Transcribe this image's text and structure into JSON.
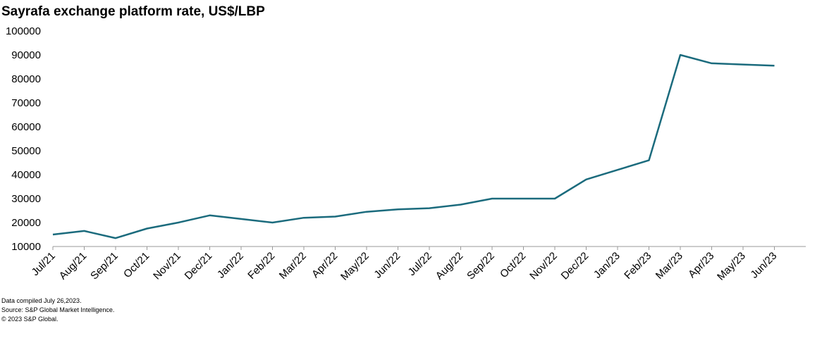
{
  "chart_data": {
    "type": "line",
    "title": "Sayrafa exchange platform rate, US$/LBP",
    "categories": [
      "Jul/21",
      "Aug/21",
      "Sep/21",
      "Oct/21",
      "Nov/21",
      "Dec/21",
      "Jan/22",
      "Feb/22",
      "Mar/22",
      "Apr/22",
      "May/22",
      "Jun/22",
      "Jul/22",
      "Aug/22",
      "Sep/22",
      "Oct/22",
      "Nov/22",
      "Dec/22",
      "Jan/23",
      "Feb/23",
      "Mar/23",
      "Apr/23",
      "May/23",
      "Jun/23"
    ],
    "series": [
      {
        "name": "Sayrafa rate",
        "color": "#1b6b7d",
        "values": [
          15000,
          16500,
          13500,
          17500,
          20000,
          23000,
          21500,
          20000,
          22000,
          22500,
          24500,
          25500,
          26000,
          27500,
          30000,
          30000,
          30000,
          38000,
          42000,
          46000,
          90000,
          86500,
          86000,
          85500
        ]
      }
    ],
    "ylim": [
      10000,
      100000
    ],
    "yticks": [
      10000,
      20000,
      30000,
      40000,
      50000,
      60000,
      70000,
      80000,
      90000,
      100000
    ],
    "notes": [
      "Data compiled July 26,2023.",
      "Source: S&P Global Market Intelligence.",
      "© 2023 S&P Global."
    ]
  }
}
